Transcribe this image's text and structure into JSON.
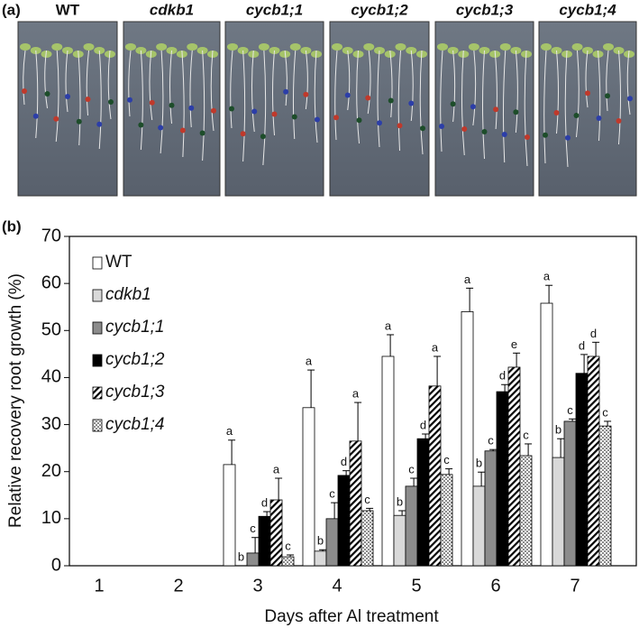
{
  "panel_a": {
    "label": "(a)",
    "photo_labels": [
      "WT",
      "cdkb1",
      "cycb1;1",
      "cycb1;2",
      "cycb1;3",
      "cycb1;4"
    ]
  },
  "chart_data": {
    "type": "bar",
    "panel_label": "(b)",
    "x_label": "Days after Al treatment",
    "y_label": "Relative recovery root growth (%)",
    "categories": [
      "1",
      "2",
      "3",
      "4",
      "5",
      "6",
      "7"
    ],
    "ylim": [
      0,
      70
    ],
    "yticks": [
      0,
      10,
      20,
      30,
      40,
      50,
      60,
      70
    ],
    "legend": "upper-left",
    "series": [
      {
        "name": "WT",
        "color": "#ffffff",
        "pattern": "solid",
        "values": [
          0,
          0,
          21.5,
          33.6,
          44.5,
          54,
          55.8
        ],
        "errors": [
          null,
          null,
          5.2,
          8,
          4.6,
          5,
          3.8
        ],
        "letters": [
          null,
          null,
          "a",
          "a",
          "a",
          "a",
          "a"
        ]
      },
      {
        "name": "cdkb1",
        "color": "#d9d9d9",
        "pattern": "solid",
        "values": [
          0,
          0,
          0,
          3.1,
          10.7,
          16.9,
          23
        ],
        "errors": [
          null,
          null,
          null,
          0.3,
          1,
          3,
          4
        ],
        "letters": [
          null,
          null,
          "b",
          "b",
          "b",
          "b",
          "b"
        ]
      },
      {
        "name": "cycb1;1",
        "color": "#8c8c8c",
        "pattern": "solid",
        "values": [
          0,
          0,
          2.7,
          10,
          16.9,
          24.4,
          30.7
        ],
        "errors": [
          null,
          null,
          3.3,
          3.4,
          1.7,
          0.3,
          0.5
        ],
        "letters": [
          null,
          null,
          "c",
          "c",
          "c",
          "c",
          "c"
        ]
      },
      {
        "name": "cycb1;2",
        "color": "#000000",
        "pattern": "solid",
        "values": [
          0,
          0,
          10.5,
          19.2,
          27,
          37,
          40.9
        ],
        "errors": [
          null,
          null,
          1,
          1,
          1,
          1.5,
          4
        ],
        "letters": [
          null,
          null,
          "d",
          "d",
          "d",
          "d",
          "d"
        ]
      },
      {
        "name": "cycb1;3",
        "color": "#000000",
        "pattern": "hatch",
        "values": [
          0,
          0,
          14,
          26.5,
          38.2,
          42.2,
          44.5
        ],
        "errors": [
          null,
          null,
          4.6,
          8.2,
          6.3,
          3,
          3
        ],
        "letters": [
          null,
          null,
          "a",
          "a",
          "a",
          "e",
          "d"
        ]
      },
      {
        "name": "cycb1;4",
        "color": "#000000",
        "pattern": "dots",
        "values": [
          0,
          0,
          1.9,
          11.7,
          19.4,
          23.4,
          29.7
        ],
        "errors": [
          null,
          null,
          0.4,
          0.5,
          1.2,
          2.5,
          1
        ],
        "letters": [
          null,
          null,
          "c",
          "c",
          "c",
          "c",
          "c"
        ]
      }
    ]
  }
}
